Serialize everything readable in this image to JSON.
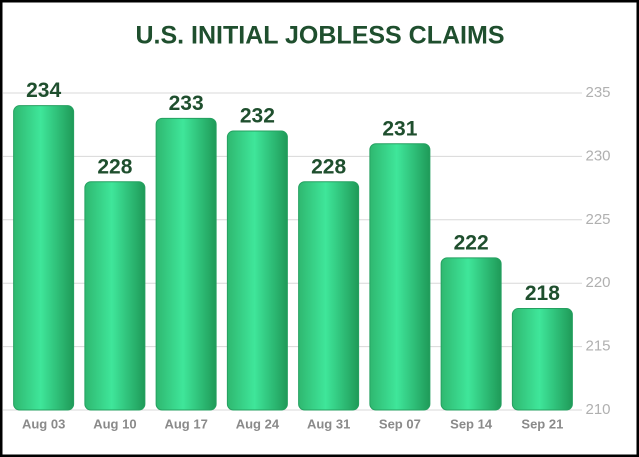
{
  "chart_data": {
    "type": "bar",
    "title": "U.S. INITIAL JOBLESS CLAIMS",
    "categories": [
      "Aug 03",
      "Aug 10",
      "Aug 17",
      "Aug 24",
      "Aug 31",
      "Sep 07",
      "Sep 14",
      "Sep 21"
    ],
    "values": [
      234,
      228,
      233,
      232,
      228,
      231,
      222,
      218
    ],
    "color": "#3fe69a",
    "ylim": [
      210,
      235
    ],
    "yticks": [
      210,
      215,
      220,
      225,
      230,
      235
    ],
    "grid": true
  }
}
